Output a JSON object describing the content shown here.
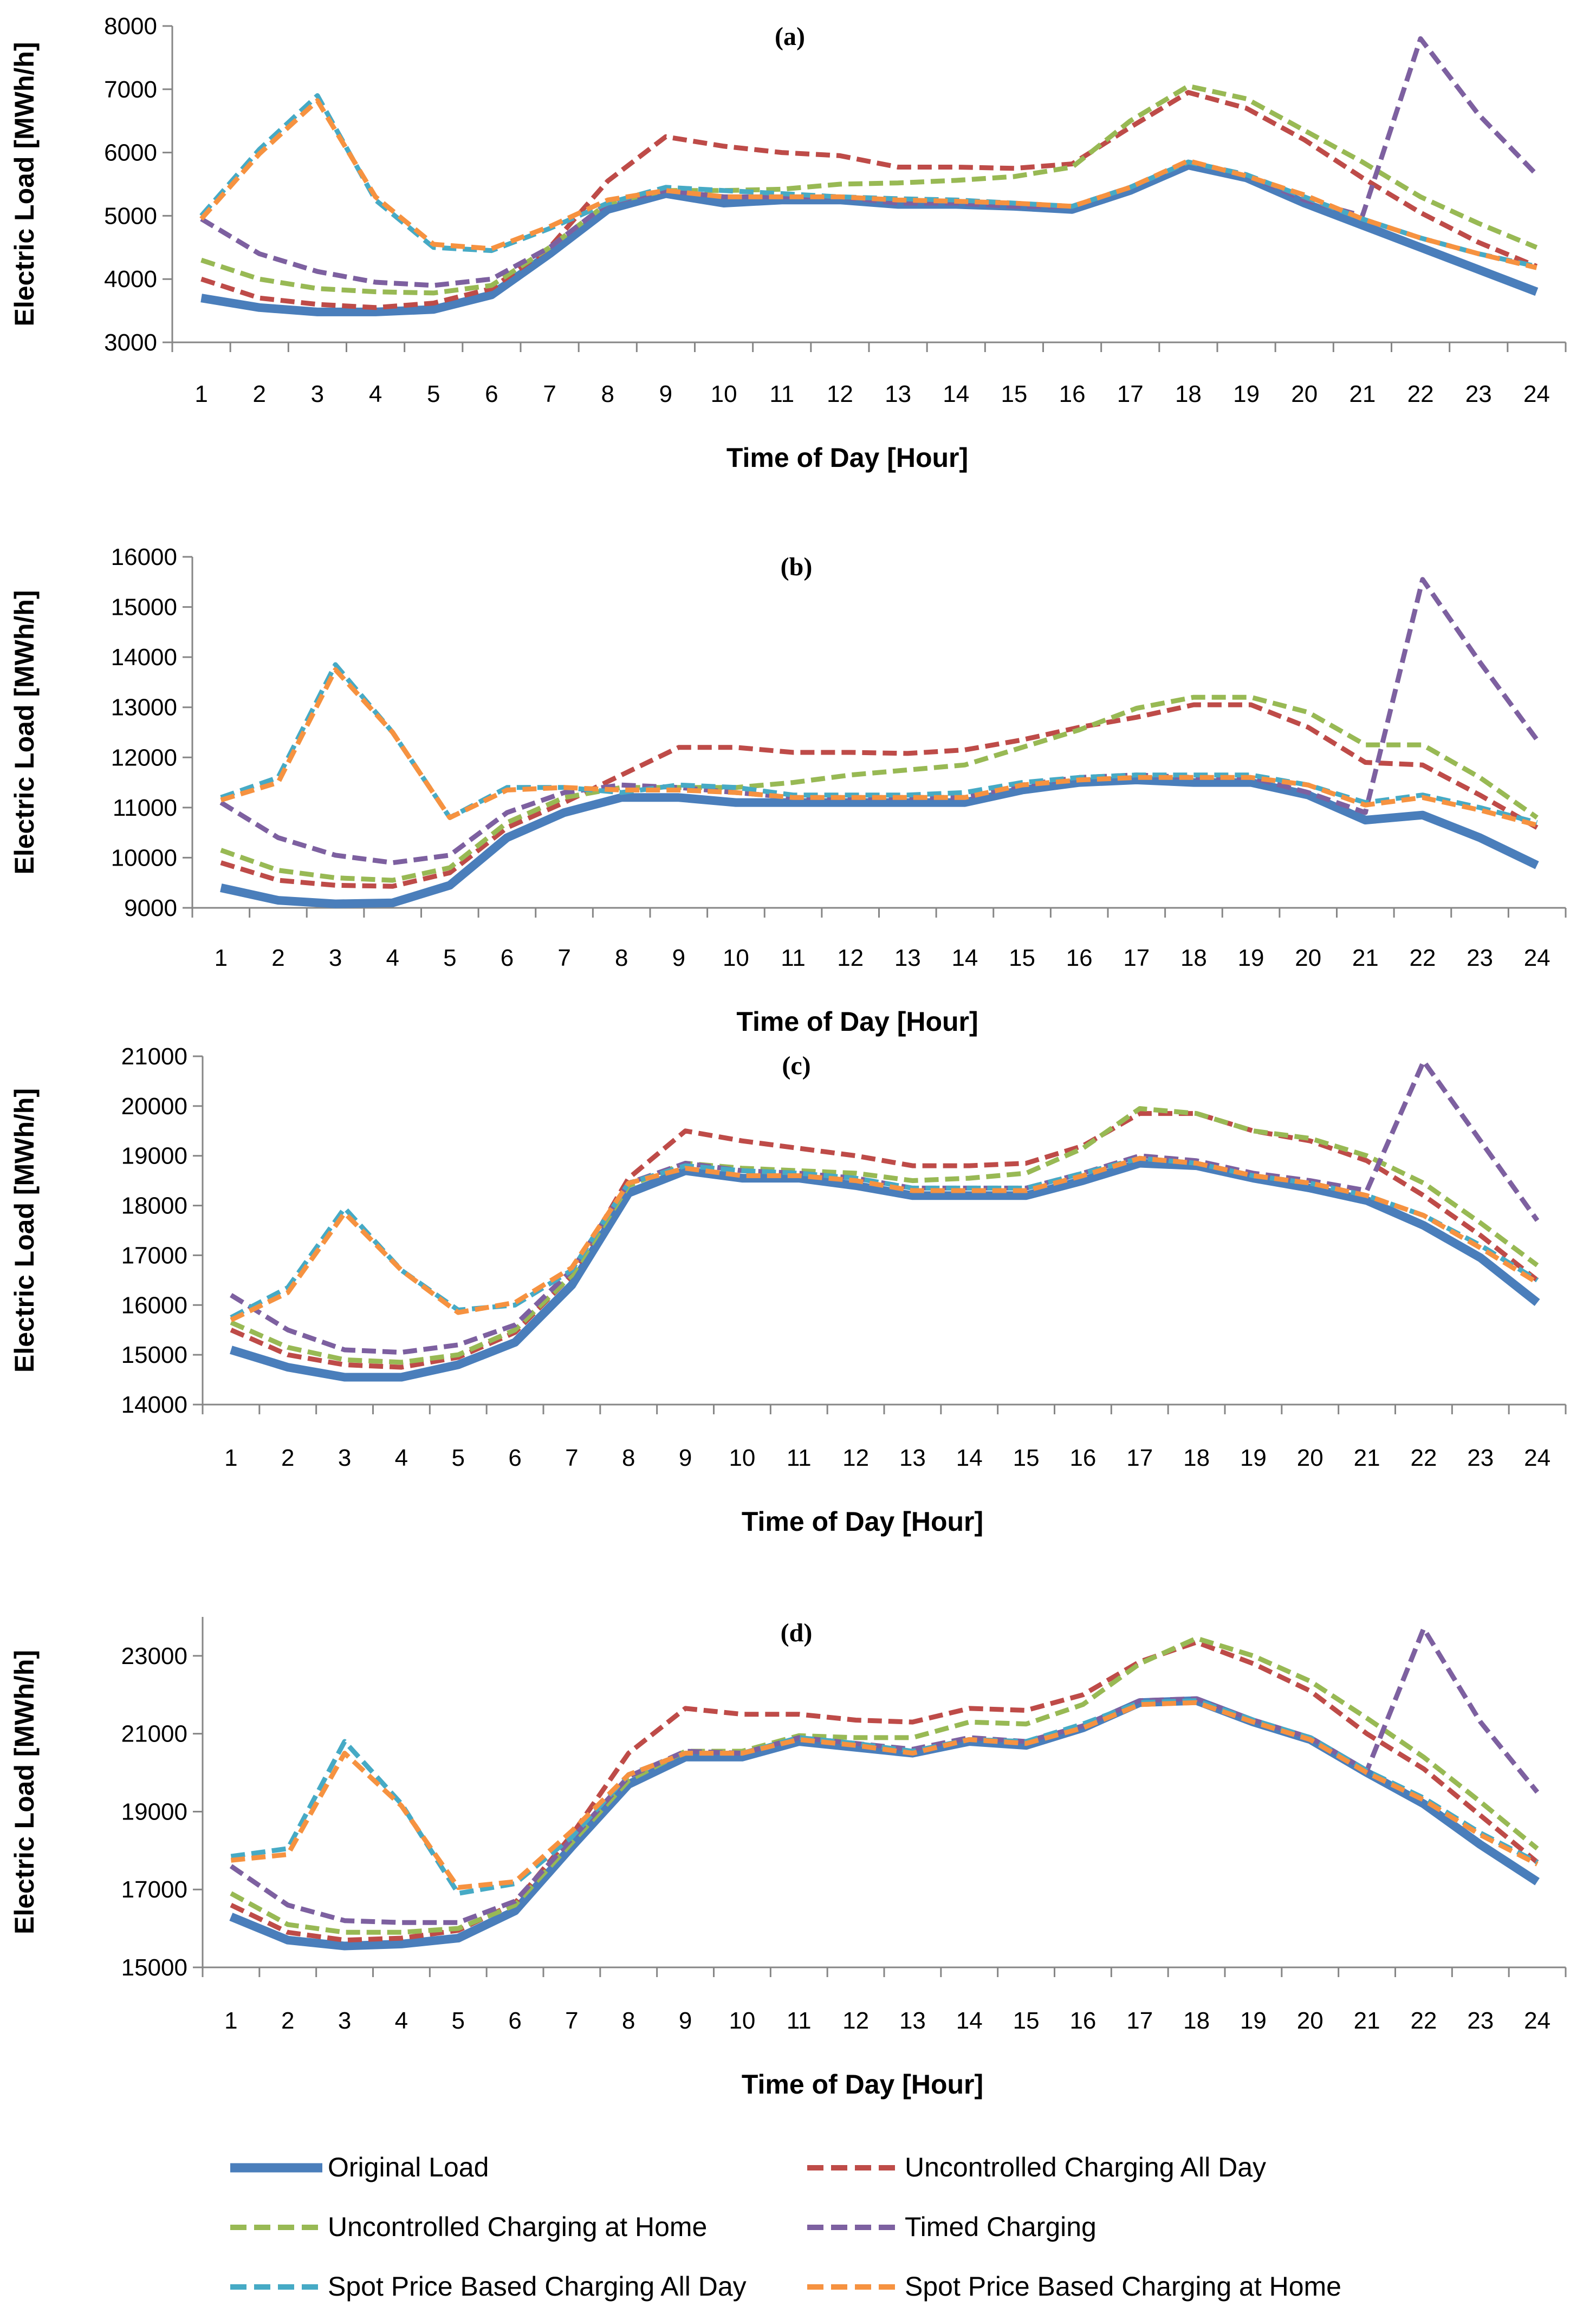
{
  "series_styles": [
    {
      "name": "Original Load",
      "color": "#4a7ebb",
      "dash": false,
      "width": 16
    },
    {
      "name": "Uncontrolled Charging All Day",
      "color": "#be4b48",
      "dash": true,
      "width": 9
    },
    {
      "name": "Uncontrolled Charging at Home",
      "color": "#98b954",
      "dash": true,
      "width": 9
    },
    {
      "name": "Timed Charging",
      "color": "#7d60a0",
      "dash": true,
      "width": 9
    },
    {
      "name": "Spot Price Based Charging All Day",
      "color": "#46aac5",
      "dash": true,
      "width": 9
    },
    {
      "name": "Spot Price Based Charging at Home",
      "color": "#f69240",
      "dash": true,
      "width": 9
    }
  ],
  "legend": [
    "Original Load",
    "Uncontrolled Charging All Day",
    "Uncontrolled Charging at Home",
    "Timed Charging",
    "Spot Price Based Charging All Day",
    "Spot Price Based Charging at Home"
  ],
  "chart_data": [
    {
      "type": "line",
      "title": "(a)",
      "xlabel": "Time of Day [Hour]",
      "ylabel": "Electric Load [MWh/h]",
      "ylim": [
        3000,
        8000
      ],
      "yticks": [
        3000,
        4000,
        5000,
        6000,
        7000,
        8000
      ],
      "categories": [
        "1",
        "2",
        "3",
        "4",
        "5",
        "6",
        "7",
        "8",
        "9",
        "10",
        "11",
        "12",
        "13",
        "14",
        "15",
        "16",
        "17",
        "18",
        "19",
        "20",
        "21",
        "22",
        "23",
        "24"
      ],
      "series": [
        {
          "name": "Original Load",
          "values": [
            3700,
            3550,
            3480,
            3480,
            3520,
            3750,
            4400,
            5100,
            5350,
            5200,
            5250,
            5250,
            5180,
            5180,
            5150,
            5100,
            5400,
            5800,
            5600,
            5200,
            4850,
            4500,
            4150,
            3800
          ]
        },
        {
          "name": "Uncontrolled Charging All Day",
          "values": [
            4000,
            3700,
            3600,
            3550,
            3620,
            3850,
            4500,
            5550,
            6250,
            6100,
            6000,
            5950,
            5770,
            5770,
            5750,
            5820,
            6400,
            6950,
            6700,
            6200,
            5600,
            5050,
            4580,
            4200
          ]
        },
        {
          "name": "Uncontrolled Charging at Home",
          "values": [
            4300,
            4000,
            3850,
            3800,
            3780,
            3900,
            4500,
            5200,
            5400,
            5400,
            5420,
            5500,
            5520,
            5560,
            5620,
            5770,
            6500,
            7050,
            6850,
            6350,
            5850,
            5300,
            4880,
            4500
          ]
        },
        {
          "name": "Timed Charging",
          "values": [
            4950,
            4400,
            4120,
            3950,
            3900,
            4000,
            4500,
            5200,
            5400,
            5300,
            5300,
            5300,
            5200,
            5200,
            5150,
            5150,
            5450,
            5850,
            5650,
            5250,
            5000,
            7800,
            6600,
            5650
          ]
        },
        {
          "name": "Spot Price Based Charging All Day",
          "values": [
            5000,
            6050,
            6900,
            5250,
            4500,
            4450,
            4800,
            5200,
            5450,
            5400,
            5350,
            5300,
            5270,
            5250,
            5200,
            5150,
            5450,
            5850,
            5650,
            5300,
            4950,
            4650,
            4400,
            4200
          ]
        },
        {
          "name": "Spot Price Based Charging at Home",
          "values": [
            4950,
            5980,
            6820,
            5300,
            4550,
            4480,
            4830,
            5250,
            5400,
            5300,
            5300,
            5300,
            5250,
            5230,
            5200,
            5150,
            5450,
            5870,
            5630,
            5330,
            4950,
            4650,
            4400,
            4180
          ]
        }
      ]
    },
    {
      "type": "line",
      "title": "(b)",
      "xlabel": "Time of Day [Hour]",
      "ylabel": "Electric Load [MWh/h]",
      "ylim": [
        9000,
        16000
      ],
      "yticks": [
        9000,
        10000,
        11000,
        12000,
        13000,
        14000,
        15000,
        16000
      ],
      "categories": [
        "1",
        "2",
        "3",
        "4",
        "5",
        "6",
        "7",
        "8",
        "9",
        "10",
        "11",
        "12",
        "13",
        "14",
        "15",
        "16",
        "17",
        "18",
        "19",
        "20",
        "21",
        "22",
        "23",
        "24"
      ],
      "series": [
        {
          "name": "Original Load",
          "values": [
            9400,
            9150,
            9080,
            9100,
            9450,
            10400,
            10900,
            11200,
            11200,
            11100,
            11100,
            11100,
            11100,
            11100,
            11350,
            11500,
            11550,
            11500,
            11500,
            11250,
            10750,
            10850,
            10400,
            9850
          ]
        },
        {
          "name": "Uncontrolled Charging All Day",
          "values": [
            9900,
            9550,
            9450,
            9430,
            9700,
            10600,
            11100,
            11650,
            12200,
            12200,
            12100,
            12100,
            12080,
            12150,
            12350,
            12600,
            12800,
            13050,
            13050,
            12600,
            11900,
            11850,
            11250,
            10600
          ]
        },
        {
          "name": "Uncontrolled Charging at Home",
          "values": [
            10150,
            9750,
            9600,
            9550,
            9800,
            10700,
            11200,
            11400,
            11400,
            11400,
            11500,
            11650,
            11750,
            11850,
            12200,
            12550,
            12980,
            13200,
            13200,
            12900,
            12250,
            12250,
            11600,
            10800
          ]
        },
        {
          "name": "Timed Charging",
          "values": [
            11100,
            10400,
            10050,
            9900,
            10050,
            10900,
            11300,
            11450,
            11400,
            11300,
            11200,
            11200,
            11200,
            11200,
            11450,
            11600,
            11650,
            11600,
            11600,
            11300,
            10900,
            15550,
            13900,
            12350
          ]
        },
        {
          "name": "Spot Price Based Charging All Day",
          "values": [
            11200,
            11600,
            13850,
            12500,
            10800,
            11400,
            11400,
            11300,
            11450,
            11400,
            11250,
            11250,
            11250,
            11300,
            11500,
            11600,
            11650,
            11650,
            11650,
            11450,
            11100,
            11250,
            11000,
            10700
          ]
        },
        {
          "name": "Spot Price Based Charging at Home",
          "values": [
            11150,
            11500,
            13750,
            12500,
            10800,
            11350,
            11400,
            11350,
            11350,
            11300,
            11200,
            11200,
            11200,
            11200,
            11450,
            11550,
            11600,
            11600,
            11600,
            11450,
            11050,
            11200,
            10950,
            10650
          ]
        }
      ]
    },
    {
      "type": "line",
      "title": "(c)",
      "xlabel": "Time of Day [Hour]",
      "ylabel": "Electric Load [MWh/h]",
      "ylim": [
        14000,
        21000
      ],
      "yticks": [
        14000,
        15000,
        16000,
        17000,
        18000,
        19000,
        20000,
        21000
      ],
      "categories": [
        "1",
        "2",
        "3",
        "4",
        "5",
        "6",
        "7",
        "8",
        "9",
        "10",
        "11",
        "12",
        "13",
        "14",
        "15",
        "16",
        "17",
        "18",
        "19",
        "20",
        "21",
        "22",
        "23",
        "24"
      ],
      "series": [
        {
          "name": "Original Load",
          "values": [
            15100,
            14750,
            14550,
            14550,
            14800,
            15250,
            16400,
            18250,
            18700,
            18550,
            18550,
            18400,
            18200,
            18200,
            18200,
            18500,
            18850,
            18800,
            18550,
            18350,
            18100,
            17600,
            16950,
            16050
          ]
        },
        {
          "name": "Uncontrolled Charging All Day",
          "values": [
            15500,
            15000,
            14800,
            14750,
            14950,
            15450,
            16600,
            18550,
            19500,
            19300,
            19150,
            19000,
            18800,
            18800,
            18850,
            19200,
            19850,
            19850,
            19500,
            19300,
            18900,
            18200,
            17400,
            16500
          ]
        },
        {
          "name": "Uncontrolled Charging at Home",
          "values": [
            15650,
            15150,
            14900,
            14850,
            15000,
            15500,
            16600,
            18400,
            18850,
            18750,
            18700,
            18650,
            18500,
            18550,
            18650,
            19150,
            19950,
            19850,
            19500,
            19350,
            19000,
            18450,
            17650,
            16800
          ]
        },
        {
          "name": "Timed Charging",
          "values": [
            16200,
            15500,
            15100,
            15050,
            15200,
            15600,
            16700,
            18450,
            18850,
            18700,
            18650,
            18550,
            18350,
            18350,
            18350,
            18650,
            19000,
            18900,
            18650,
            18500,
            18300,
            20900,
            19300,
            17700
          ]
        },
        {
          "name": "Spot Price Based Charging All Day",
          "values": [
            15750,
            16350,
            17950,
            16700,
            15900,
            16000,
            16700,
            18450,
            18800,
            18700,
            18650,
            18550,
            18350,
            18350,
            18350,
            18650,
            18950,
            18850,
            18600,
            18450,
            18200,
            17800,
            17200,
            16500
          ]
        },
        {
          "name": "Spot Price Based Charging at Home",
          "values": [
            15700,
            16250,
            17850,
            16700,
            15850,
            16050,
            16750,
            18450,
            18750,
            18600,
            18600,
            18500,
            18300,
            18300,
            18300,
            18600,
            18950,
            18850,
            18600,
            18450,
            18200,
            17800,
            17150,
            16450
          ]
        }
      ]
    },
    {
      "type": "line",
      "title": "(d)",
      "xlabel": "Time of Day [Hour]",
      "ylabel": "Electric Load [MWh/h]",
      "ylim": [
        15000,
        24000
      ],
      "yticks": [
        15000,
        17000,
        19000,
        21000,
        23000
      ],
      "categories": [
        "1",
        "2",
        "3",
        "4",
        "5",
        "6",
        "7",
        "8",
        "9",
        "10",
        "11",
        "12",
        "13",
        "14",
        "15",
        "16",
        "17",
        "18",
        "19",
        "20",
        "21",
        "22",
        "23",
        "24"
      ],
      "series": [
        {
          "name": "Original Load",
          "values": [
            16300,
            15700,
            15550,
            15600,
            15750,
            16450,
            18100,
            19700,
            20400,
            20400,
            20800,
            20650,
            20500,
            20800,
            20700,
            21150,
            21800,
            21850,
            21300,
            20850,
            20000,
            19200,
            18150,
            17200
          ]
        },
        {
          "name": "Uncontrolled Charging All Day",
          "values": [
            16600,
            15900,
            15700,
            15750,
            15950,
            16650,
            18400,
            20500,
            21650,
            21500,
            21500,
            21350,
            21300,
            21650,
            21600,
            22000,
            22850,
            23350,
            22800,
            22100,
            21000,
            20100,
            18900,
            17700
          ]
        },
        {
          "name": "Uncontrolled Charging at Home",
          "values": [
            16900,
            16100,
            15900,
            15900,
            16000,
            16600,
            18200,
            19800,
            20550,
            20550,
            20950,
            20900,
            20900,
            21300,
            21250,
            21750,
            22800,
            23450,
            23000,
            22350,
            21400,
            20400,
            19250,
            18050
          ]
        },
        {
          "name": "Timed Charging",
          "values": [
            17600,
            16600,
            16200,
            16150,
            16150,
            16700,
            18300,
            19900,
            20550,
            20500,
            20900,
            20750,
            20600,
            20900,
            20800,
            21200,
            21850,
            21900,
            21350,
            20900,
            20050,
            23700,
            21300,
            19500
          ]
        },
        {
          "name": "Spot Price Based Charging All Day",
          "values": [
            17850,
            18050,
            20800,
            19200,
            16900,
            17150,
            18350,
            19950,
            20500,
            20500,
            20900,
            20750,
            20550,
            20850,
            20800,
            21250,
            21800,
            21850,
            21350,
            20900,
            20050,
            19350,
            18450,
            17700
          ]
        },
        {
          "name": "Spot Price Based Charging at Home",
          "values": [
            17750,
            17900,
            20500,
            19150,
            17050,
            17200,
            18500,
            19950,
            20500,
            20500,
            20850,
            20700,
            20500,
            20850,
            20750,
            21150,
            21750,
            21800,
            21300,
            20850,
            20000,
            19300,
            18400,
            17650
          ]
        }
      ]
    }
  ]
}
